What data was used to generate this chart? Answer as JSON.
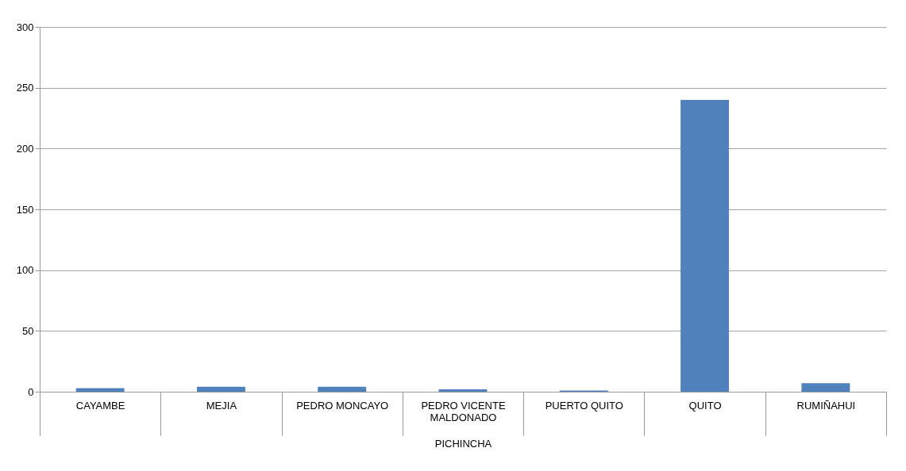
{
  "chart_data": {
    "type": "bar",
    "xlabel": "PICHINCHA",
    "categories": [
      "CAYAMBE",
      "MEJIA",
      "PEDRO MONCAYO",
      "PEDRO VICENTE MALDONADO",
      "PUERTO  QUITO",
      "QUITO",
      "RUMIÑAHUI"
    ],
    "values": [
      3,
      4,
      4,
      2,
      1,
      240,
      7
    ],
    "color": "#4f81bd",
    "ylim": [
      0,
      300
    ],
    "yticks": [
      0,
      50,
      100,
      150,
      200,
      250,
      300
    ],
    "grid": "y"
  }
}
